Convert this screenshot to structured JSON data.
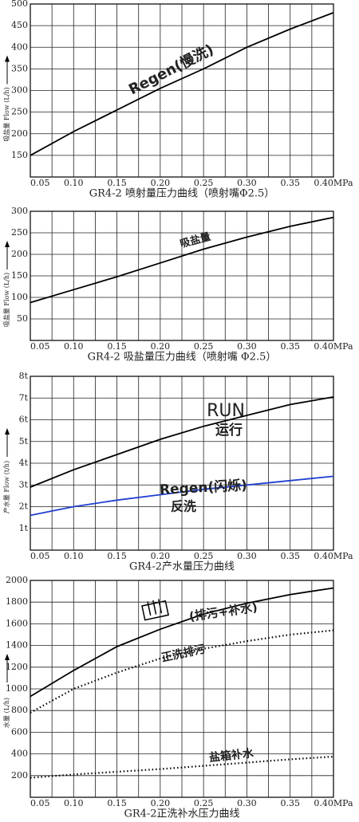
{
  "chart_data": [
    {
      "type": "line",
      "title": "GR4-2 喷射量压力曲线（喷射嘴Φ2.5）",
      "y_label": "吸盐量 Flow (L/h)",
      "x": [
        0.05,
        0.1,
        0.15,
        0.2,
        0.25,
        0.3,
        0.35,
        0.4
      ],
      "xlim": [
        0.05,
        0.4
      ],
      "xticks": [
        {
          "value": 0.05,
          "label": "0.05"
        },
        {
          "value": 0.1,
          "label": "0.10"
        },
        {
          "value": 0.15,
          "label": "0.15"
        },
        {
          "value": 0.2,
          "label": "0.20"
        },
        {
          "value": 0.25,
          "label": "0.25"
        },
        {
          "value": 0.3,
          "label": "0.30"
        },
        {
          "value": 0.35,
          "label": "0.35"
        },
        {
          "value": 0.4,
          "label": "0.40MPa"
        }
      ],
      "ylim": [
        100,
        500
      ],
      "yticks": [
        150,
        200,
        250,
        300,
        350,
        400,
        450,
        500
      ],
      "grid": true,
      "series": [
        {
          "name": "Regen(慢洗)",
          "color": "#000000",
          "line_style": "solid",
          "values": [
            150,
            205,
            255,
            305,
            350,
            400,
            442,
            480
          ]
        }
      ],
      "annotations": []
    },
    {
      "type": "line",
      "title": "GR4-2 吸盐量压力曲线（喷射嘴 Φ2.5）",
      "y_label": "吸盐量 Flow (L/h)",
      "x": [
        0.05,
        0.1,
        0.15,
        0.2,
        0.25,
        0.3,
        0.35,
        0.4
      ],
      "xlim": [
        0.05,
        0.4
      ],
      "xticks": [
        {
          "value": 0.05,
          "label": "0.05"
        },
        {
          "value": 0.1,
          "label": "0.10"
        },
        {
          "value": 0.15,
          "label": "0.15"
        },
        {
          "value": 0.2,
          "label": "0.20"
        },
        {
          "value": 0.25,
          "label": "0.25"
        },
        {
          "value": 0.3,
          "label": "0.30"
        },
        {
          "value": 0.35,
          "label": "0.35"
        },
        {
          "value": 0.4,
          "label": "0.40MPa"
        }
      ],
      "ylim": [
        0,
        300
      ],
      "yticks": [
        50,
        100,
        150,
        200,
        250,
        300
      ],
      "grid": true,
      "series": [
        {
          "name": "吸盐量",
          "color": "#000000",
          "line_style": "solid",
          "values": [
            88,
            118,
            148,
            180,
            212,
            240,
            265,
            286
          ]
        }
      ],
      "annotations": []
    },
    {
      "type": "line",
      "title": "GR4-2产水量压力曲线",
      "y_label": "产水量 Flow (t/h)",
      "x": [
        0.05,
        0.1,
        0.15,
        0.2,
        0.25,
        0.3,
        0.35,
        0.4
      ],
      "xlim": [
        0.05,
        0.4
      ],
      "xticks": [
        {
          "value": 0.05,
          "label": "0.05"
        },
        {
          "value": 0.1,
          "label": "0.10"
        },
        {
          "value": 0.15,
          "label": "0.15"
        },
        {
          "value": 0.2,
          "label": "0.20"
        },
        {
          "value": 0.25,
          "label": "0.25"
        },
        {
          "value": 0.3,
          "label": "0.30"
        },
        {
          "value": 0.35,
          "label": "0.35"
        },
        {
          "value": 0.4,
          "label": "0.40MPa"
        }
      ],
      "ylim": [
        0,
        8
      ],
      "yticks": [
        {
          "value": 1,
          "label": "1t"
        },
        {
          "value": 2,
          "label": "2t"
        },
        {
          "value": 3,
          "label": "3t"
        },
        {
          "value": 4,
          "label": "4t"
        },
        {
          "value": 5,
          "label": "5t"
        },
        {
          "value": 6,
          "label": "6t"
        },
        {
          "value": 7,
          "label": "7t"
        },
        {
          "value": 8,
          "label": "8t"
        }
      ],
      "grid": true,
      "series": [
        {
          "name": "RUN",
          "color": "#000000",
          "line_style": "solid",
          "values": [
            2.9,
            3.7,
            4.4,
            5.1,
            5.7,
            6.2,
            6.7,
            7.05
          ]
        },
        {
          "name": "Regen(闪烁)",
          "color": "#1f3fd0",
          "line_style": "solid",
          "values": [
            1.6,
            2.0,
            2.3,
            2.55,
            2.8,
            3.0,
            3.2,
            3.4
          ]
        }
      ],
      "annotations": [
        {
          "text": "运行",
          "color": "#000000"
        },
        {
          "text": "反洗",
          "color": "#e01010"
        }
      ]
    },
    {
      "type": "line",
      "title": "GR4-2正洗补水压力曲线",
      "y_label": "水量 (L/h)",
      "x": [
        0.05,
        0.1,
        0.15,
        0.2,
        0.25,
        0.3,
        0.35,
        0.4
      ],
      "xlim": [
        0.05,
        0.4
      ],
      "xticks": [
        {
          "value": 0.05,
          "label": "0.05"
        },
        {
          "value": 0.1,
          "label": "0.10"
        },
        {
          "value": 0.15,
          "label": "0.15"
        },
        {
          "value": 0.2,
          "label": "0.20"
        },
        {
          "value": 0.25,
          "label": "0.25"
        },
        {
          "value": 0.3,
          "label": "0.30"
        },
        {
          "value": 0.35,
          "label": "0.35"
        },
        {
          "value": 0.4,
          "label": "0.40MPa"
        }
      ],
      "ylim": [
        0,
        2000
      ],
      "yticks": [
        200,
        400,
        600,
        800,
        1000,
        1200,
        1400,
        1600,
        1800,
        2000
      ],
      "grid": true,
      "series": [
        {
          "name": "(排污+补水)",
          "color": "#000000",
          "line_style": "solid",
          "values": [
            930,
            1170,
            1390,
            1550,
            1690,
            1790,
            1870,
            1930
          ]
        },
        {
          "name": "正洗排污",
          "color": "#000000",
          "line_style": "dotted",
          "values": [
            780,
            1000,
            1150,
            1280,
            1370,
            1440,
            1500,
            1540
          ]
        },
        {
          "name": "盐箱补水",
          "color": "#000000",
          "line_style": "dotted",
          "values": [
            180,
            210,
            235,
            260,
            290,
            320,
            350,
            375
          ]
        }
      ],
      "annotations": []
    }
  ]
}
